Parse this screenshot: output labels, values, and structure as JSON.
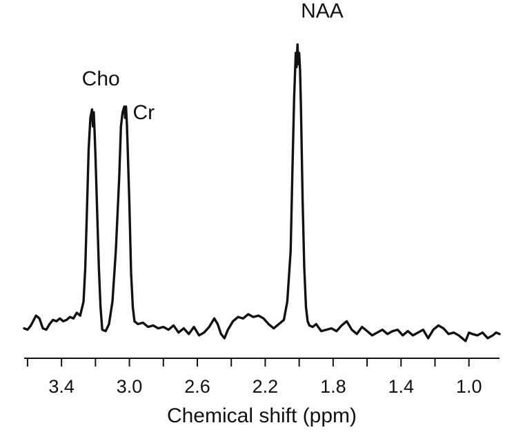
{
  "chart_data": {
    "type": "line",
    "xlabel": "Chemical shift (ppm)",
    "ylabel": "",
    "x_reversed": true,
    "xlim": [
      3.62,
      0.82
    ],
    "ylim": [
      0,
      10
    ],
    "grid": false,
    "legend": "none",
    "y_axis_visible": false,
    "x_ticks": [
      3.4,
      3.0,
      2.6,
      2.2,
      1.8,
      1.4,
      1.0
    ],
    "x_tick_labels": [
      "3.4",
      "3.0",
      "2.6",
      "2.2",
      "1.8",
      "1.4",
      "1.0"
    ],
    "line_color": "#111111",
    "series": [
      {
        "x": [
          3.62,
          3.6,
          3.58,
          3.55,
          3.53,
          3.51,
          3.49,
          3.47,
          3.45,
          3.43,
          3.41,
          3.39,
          3.37,
          3.35,
          3.33,
          3.31,
          3.29,
          3.27,
          3.26,
          3.25,
          3.24,
          3.23,
          3.22,
          3.215,
          3.21,
          3.205,
          3.2,
          3.19,
          3.18,
          3.17,
          3.16,
          3.14,
          3.12,
          3.1,
          3.08,
          3.06,
          3.05,
          3.04,
          3.03,
          3.025,
          3.02,
          3.015,
          3.01,
          3.0,
          2.99,
          2.98,
          2.97,
          2.95,
          2.92,
          2.89,
          2.86,
          2.83,
          2.8,
          2.77,
          2.74,
          2.71,
          2.68,
          2.65,
          2.62,
          2.59,
          2.56,
          2.53,
          2.5,
          2.48,
          2.46,
          2.44,
          2.42,
          2.39,
          2.36,
          2.33,
          2.3,
          2.27,
          2.24,
          2.21,
          2.18,
          2.15,
          2.12,
          2.09,
          2.07,
          2.05,
          2.04,
          2.03,
          2.02,
          2.015,
          2.01,
          2.005,
          2.0,
          1.995,
          1.99,
          1.985,
          1.98,
          1.97,
          1.96,
          1.95,
          1.94,
          1.92,
          1.9,
          1.87,
          1.84,
          1.81,
          1.78,
          1.75,
          1.72,
          1.69,
          1.66,
          1.63,
          1.6,
          1.57,
          1.54,
          1.51,
          1.48,
          1.45,
          1.42,
          1.39,
          1.36,
          1.33,
          1.3,
          1.27,
          1.24,
          1.21,
          1.18,
          1.15,
          1.12,
          1.09,
          1.06,
          1.04,
          1.02,
          1.0,
          0.98,
          0.95,
          0.92,
          0.89,
          0.86,
          0.84,
          0.82
        ],
        "y": [
          0.45,
          0.4,
          0.55,
          0.9,
          0.8,
          0.45,
          0.4,
          0.6,
          0.75,
          0.7,
          0.8,
          0.7,
          0.75,
          0.85,
          0.8,
          1.0,
          0.9,
          1.4,
          2.6,
          4.6,
          6.8,
          7.9,
          8.2,
          7.6,
          8.1,
          7.4,
          6.6,
          4.6,
          2.6,
          1.2,
          0.4,
          0.35,
          0.6,
          1.4,
          3.2,
          5.8,
          7.6,
          8.1,
          8.3,
          7.9,
          8.3,
          7.7,
          6.8,
          4.8,
          2.4,
          1.2,
          0.7,
          0.6,
          0.65,
          0.5,
          0.55,
          0.45,
          0.5,
          0.4,
          0.55,
          0.3,
          0.45,
          0.25,
          0.5,
          0.2,
          0.3,
          0.5,
          0.8,
          0.6,
          0.25,
          0.1,
          0.4,
          0.7,
          0.85,
          0.8,
          0.95,
          0.85,
          0.9,
          0.8,
          0.6,
          0.45,
          0.6,
          0.75,
          1.4,
          3.2,
          6.0,
          8.6,
          10.2,
          9.7,
          10.5,
          9.8,
          10.2,
          9.6,
          8.4,
          6.8,
          5.0,
          2.6,
          1.2,
          0.7,
          0.55,
          0.5,
          0.6,
          0.35,
          0.4,
          0.45,
          0.35,
          0.55,
          0.7,
          0.4,
          0.25,
          0.5,
          0.35,
          0.2,
          0.3,
          0.4,
          0.25,
          0.35,
          0.4,
          0.2,
          0.35,
          0.2,
          0.3,
          0.4,
          0.1,
          0.4,
          0.55,
          0.45,
          0.25,
          0.3,
          0.2,
          0.1,
          0.0,
          0.3,
          0.25,
          0.2,
          0.3,
          0.1,
          0.2,
          0.3,
          0.25
        ]
      }
    ],
    "annotations": [
      {
        "text": "Cho",
        "x": 3.28,
        "y": 9.05
      },
      {
        "text": "Cr",
        "x": 2.98,
        "y": 7.85
      },
      {
        "text": "NAA",
        "x": 1.99,
        "y": 11.45
      }
    ]
  }
}
